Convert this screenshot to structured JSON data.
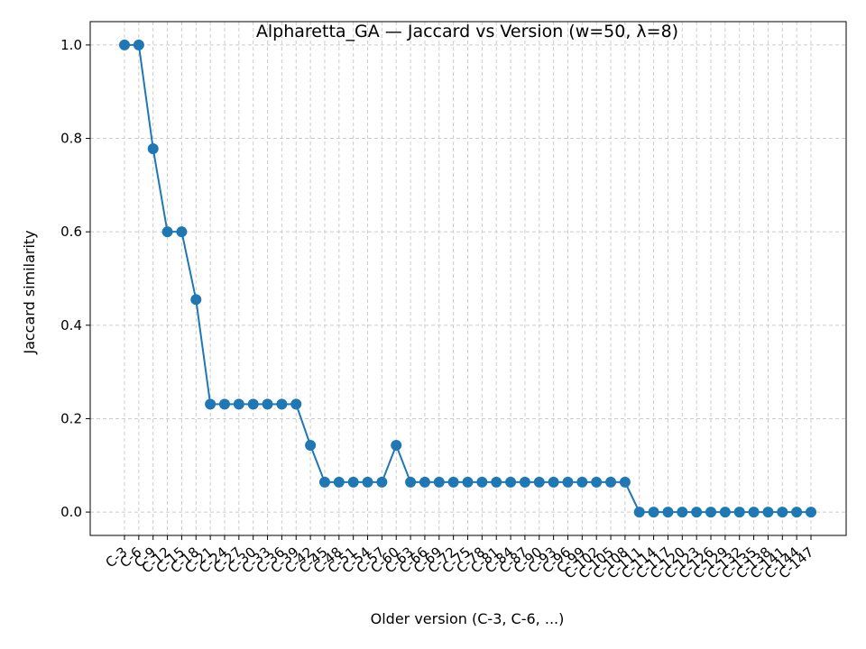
{
  "chart_data": {
    "type": "line",
    "title": "Alpharetta_GA — Jaccard vs Version (w=50, λ=8)",
    "xlabel": "Older version (C-3, C-6, ...)",
    "ylabel": "Jaccard similarity",
    "ylim": [
      -0.05,
      1.05
    ],
    "yticks": [
      "0.0",
      "0.2",
      "0.4",
      "0.6",
      "0.8",
      "1.0"
    ],
    "grid": true,
    "color": "#1f77b4",
    "categories": [
      "C-3",
      "C-6",
      "C-9",
      "C-12",
      "C-15",
      "C-18",
      "C-21",
      "C-24",
      "C-27",
      "C-30",
      "C-33",
      "C-36",
      "C-39",
      "C-42",
      "C-45",
      "C-48",
      "C-51",
      "C-54",
      "C-57",
      "C-60",
      "C-63",
      "C-66",
      "C-69",
      "C-72",
      "C-75",
      "C-78",
      "C-81",
      "C-84",
      "C-87",
      "C-90",
      "C-93",
      "C-96",
      "C-99",
      "C-102",
      "C-105",
      "C-108",
      "C-111",
      "C-114",
      "C-117",
      "C-120",
      "C-123",
      "C-126",
      "C-129",
      "C-132",
      "C-135",
      "C-138",
      "C-141",
      "C-144",
      "C-147"
    ],
    "values": [
      1.0,
      1.0,
      0.778,
      0.6,
      0.6,
      0.455,
      0.231,
      0.231,
      0.231,
      0.231,
      0.231,
      0.231,
      0.231,
      0.143,
      0.064,
      0.064,
      0.064,
      0.064,
      0.064,
      0.143,
      0.064,
      0.064,
      0.064,
      0.064,
      0.064,
      0.064,
      0.064,
      0.064,
      0.064,
      0.064,
      0.064,
      0.064,
      0.064,
      0.064,
      0.064,
      0.064,
      0.0,
      0.0,
      0.0,
      0.0,
      0.0,
      0.0,
      0.0,
      0.0,
      0.0,
      0.0,
      0.0,
      0.0,
      0.0
    ]
  }
}
